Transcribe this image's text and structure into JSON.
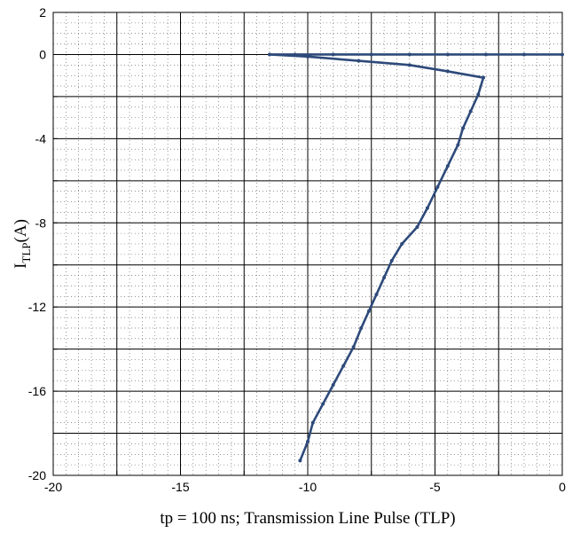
{
  "chart_data": {
    "type": "line",
    "title": "",
    "xlabel": "tp = 100 ns; Transmission Line Pulse (TLP)",
    "ylabel_main": "I",
    "ylabel_sub": "TLP",
    "ylabel_unit": "(A)",
    "xlim": [
      -20,
      0
    ],
    "ylim": [
      -20,
      2
    ],
    "xticks": [
      "-20",
      "-15",
      "-10",
      "-5",
      "0"
    ],
    "xtick_values": [
      -20,
      -15,
      -10,
      -5,
      0
    ],
    "yticks": [
      "2",
      "0",
      "-4",
      "-8",
      "-12",
      "-16",
      "-20"
    ],
    "ytick_values": [
      2,
      0,
      -4,
      -8,
      -12,
      -16,
      -20
    ],
    "grid": "major solid, minor dotted",
    "series": [
      {
        "color": "#2e4a7a",
        "x": [
          0,
          -1.5,
          -3,
          -4.5,
          -6,
          -7.5,
          -9,
          -10.5,
          -11.5,
          -10,
          -8,
          -6,
          -4.5,
          -3.1,
          -3.3,
          -3.6,
          -3.9,
          -4.1,
          -4.5,
          -4.9,
          -5.3,
          -5.7,
          -6.3,
          -6.7,
          -7.0,
          -7.3,
          -7.6,
          -7.9,
          -8.2,
          -8.6,
          -9.0,
          -9.4,
          -9.8,
          -10.0,
          -10.3
        ],
        "y": [
          0,
          0,
          0,
          0,
          0,
          0,
          0,
          0,
          0,
          -0.1,
          -0.3,
          -0.5,
          -0.8,
          -1.1,
          -1.9,
          -2.7,
          -3.5,
          -4.3,
          -5.3,
          -6.3,
          -7.3,
          -8.2,
          -9.0,
          -9.8,
          -10.6,
          -11.4,
          -12.2,
          -13.0,
          -13.9,
          -14.8,
          -15.7,
          -16.6,
          -17.5,
          -18.4,
          -19.3
        ]
      }
    ]
  }
}
